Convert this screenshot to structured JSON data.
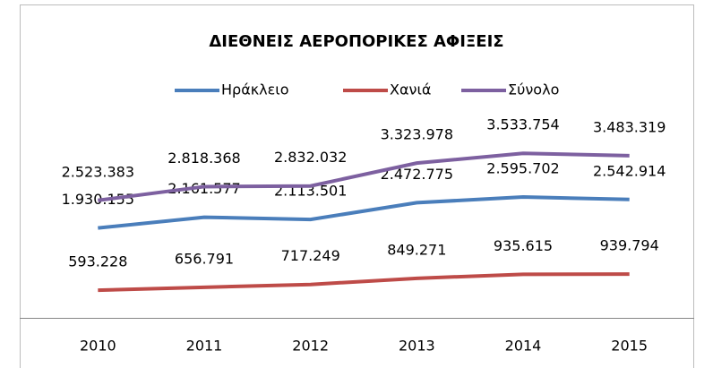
{
  "chart_data": {
    "type": "line",
    "title": "ΔΙΕΘΝΕΙΣ ΑΕΡΟΠΟΡΙΚΕΣ ΑΦΙΞΕΙΣ",
    "categories": [
      "2010",
      "2011",
      "2012",
      "2013",
      "2014",
      "2015"
    ],
    "series": [
      {
        "name": "Ηράκλειο",
        "color": "#4a7ebb",
        "values": [
          1930155,
          2161577,
          2113501,
          2472775,
          2595702,
          2542914
        ],
        "value_labels": [
          "1.930.155",
          "2.161.577",
          "2.113.501",
          "2.472.775",
          "2.595.702",
          "2.542.914"
        ]
      },
      {
        "name": "Χανιά",
        "color": "#be4b48",
        "values": [
          593228,
          656791,
          717249,
          849271,
          935615,
          939794
        ],
        "value_labels": [
          "593.228",
          "656.791",
          "717.249",
          "849.271",
          "935.615",
          "939.794"
        ]
      },
      {
        "name": "Σύνολο",
        "color": "#7d60a0",
        "values": [
          2523383,
          2818368,
          2832032,
          3323978,
          3533754,
          3483319
        ],
        "value_labels": [
          "2.523.383",
          "2.818.368",
          "2.832.032",
          "3.323.978",
          "3.533.754",
          "3.483.319"
        ]
      }
    ],
    "ylim": [
      0,
      5000000
    ],
    "legend": "top"
  }
}
